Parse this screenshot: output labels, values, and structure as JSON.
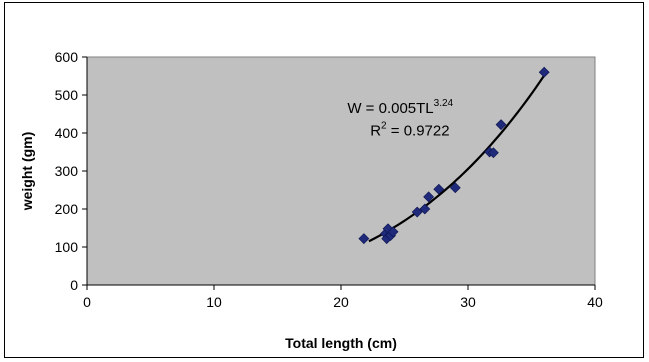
{
  "chart_data": {
    "type": "scatter",
    "title": "",
    "xlabel": "Total length (cm)",
    "ylabel": "weight (gm)",
    "xlim": [
      0,
      40
    ],
    "ylim": [
      0,
      600
    ],
    "x_ticks": [
      0,
      10,
      20,
      30,
      40
    ],
    "y_ticks": [
      0,
      100,
      200,
      300,
      400,
      500,
      600
    ],
    "grid": false,
    "legend": "none",
    "plot_background": "#c0c0c0",
    "marker_color": "#1f2a7a",
    "trendline_color": "#000000",
    "series": [
      {
        "marker": "diamond",
        "points": [
          {
            "x": 21.8,
            "y": 122
          },
          {
            "x": 23.5,
            "y": 135
          },
          {
            "x": 23.6,
            "y": 122
          },
          {
            "x": 23.7,
            "y": 148
          },
          {
            "x": 23.9,
            "y": 130
          },
          {
            "x": 24.1,
            "y": 140
          },
          {
            "x": 26.0,
            "y": 192
          },
          {
            "x": 26.6,
            "y": 200
          },
          {
            "x": 26.9,
            "y": 232
          },
          {
            "x": 27.7,
            "y": 252
          },
          {
            "x": 29.0,
            "y": 256
          },
          {
            "x": 31.7,
            "y": 350
          },
          {
            "x": 32.0,
            "y": 348
          },
          {
            "x": 32.6,
            "y": 422
          },
          {
            "x": 36.0,
            "y": 560
          }
        ]
      }
    ],
    "trendline": {
      "type": "power",
      "a": 0.005,
      "b": 3.24,
      "x_range": [
        22.2,
        36.0
      ]
    },
    "annotation": {
      "equation_prefix": "W = 0.005TL",
      "equation_exponent": "3.24",
      "r2_prefix": "R",
      "r2_exponent": "2",
      "r2_suffix": " = 0.9722"
    }
  }
}
